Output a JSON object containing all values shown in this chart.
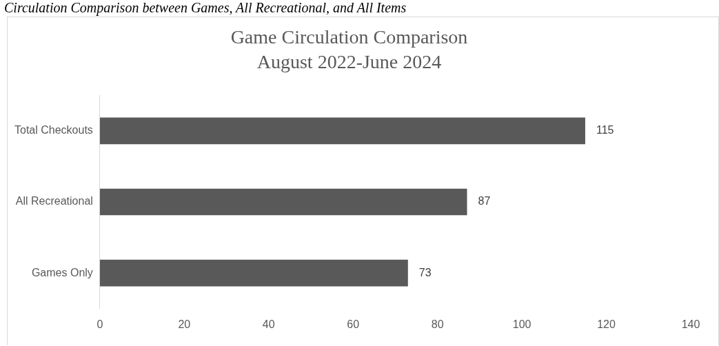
{
  "chart_data": {
    "type": "bar",
    "orientation": "horizontal",
    "title": "Game Circulation Comparison",
    "subtitle": "August 2022-June 2024",
    "annotations": [
      "Circulation Comparison between Games, All Recreational, and All Items"
    ],
    "categories": [
      "Total Checkouts",
      "All Recreational",
      "Games Only"
    ],
    "values": [
      115,
      87,
      73
    ],
    "color": "#595959",
    "data_labels": true,
    "xlim": [
      0,
      140
    ],
    "xticks": [
      0,
      20,
      40,
      60,
      80,
      100,
      120,
      140
    ],
    "grid": false,
    "legend": false
  }
}
